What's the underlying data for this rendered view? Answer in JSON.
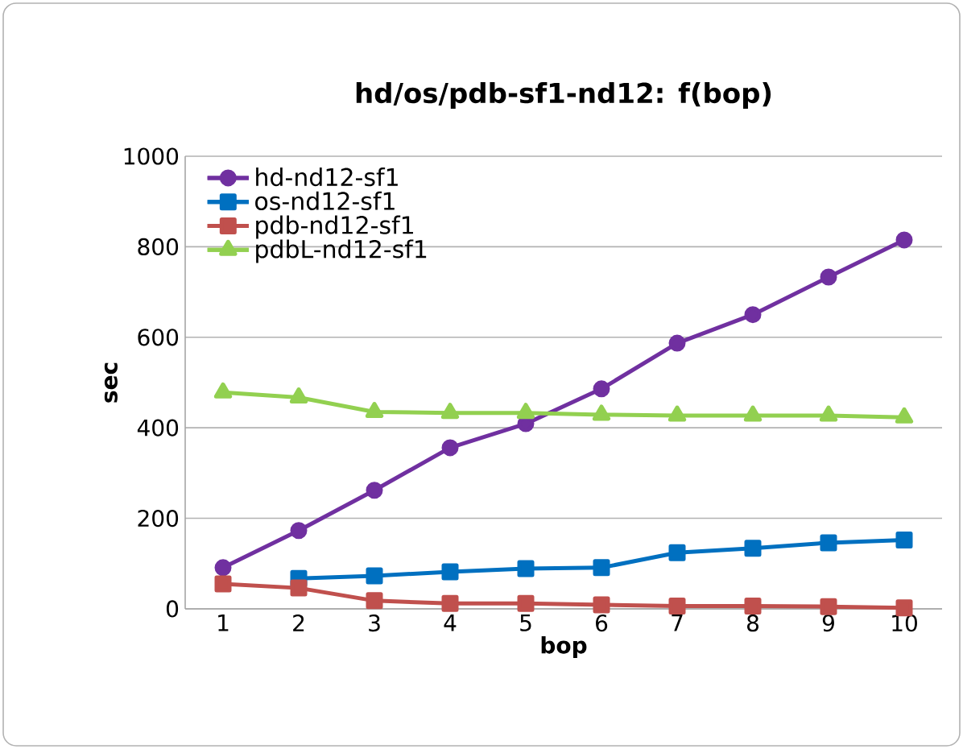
{
  "chart_data": {
    "type": "line",
    "title": "hd/os/pdb-sf1-nd12: f(bop)",
    "xlabel": "bop",
    "ylabel": "sec",
    "categories": [
      "1",
      "2",
      "3",
      "4",
      "5",
      "6",
      "7",
      "8",
      "9",
      "10"
    ],
    "series": [
      {
        "name": "hd-nd12-sf1",
        "color": "#7030a0",
        "marker": "circle",
        "values": [
          91,
          173,
          262,
          356,
          409,
          486,
          587,
          650,
          733,
          815
        ]
      },
      {
        "name": "os-nd12-sf1",
        "color": "#0070c0",
        "marker": "square",
        "values": [
          null,
          67,
          73,
          82,
          89,
          91,
          124,
          134,
          146,
          152
        ]
      },
      {
        "name": "pdb-nd12-sf1",
        "color": "#c0504d",
        "marker": "square",
        "values": [
          55,
          46,
          18,
          12,
          12,
          9,
          6,
          6,
          5,
          2
        ]
      },
      {
        "name": "pdbL-nd12-sf1",
        "color": "#92d050",
        "marker": "triangle",
        "values": [
          478,
          467,
          435,
          433,
          433,
          429,
          427,
          427,
          427,
          423
        ]
      }
    ],
    "ylim": [
      0,
      1000
    ],
    "yticks": [
      0,
      200,
      400,
      600,
      800,
      1000
    ],
    "grid": "y",
    "legend": "top left"
  }
}
